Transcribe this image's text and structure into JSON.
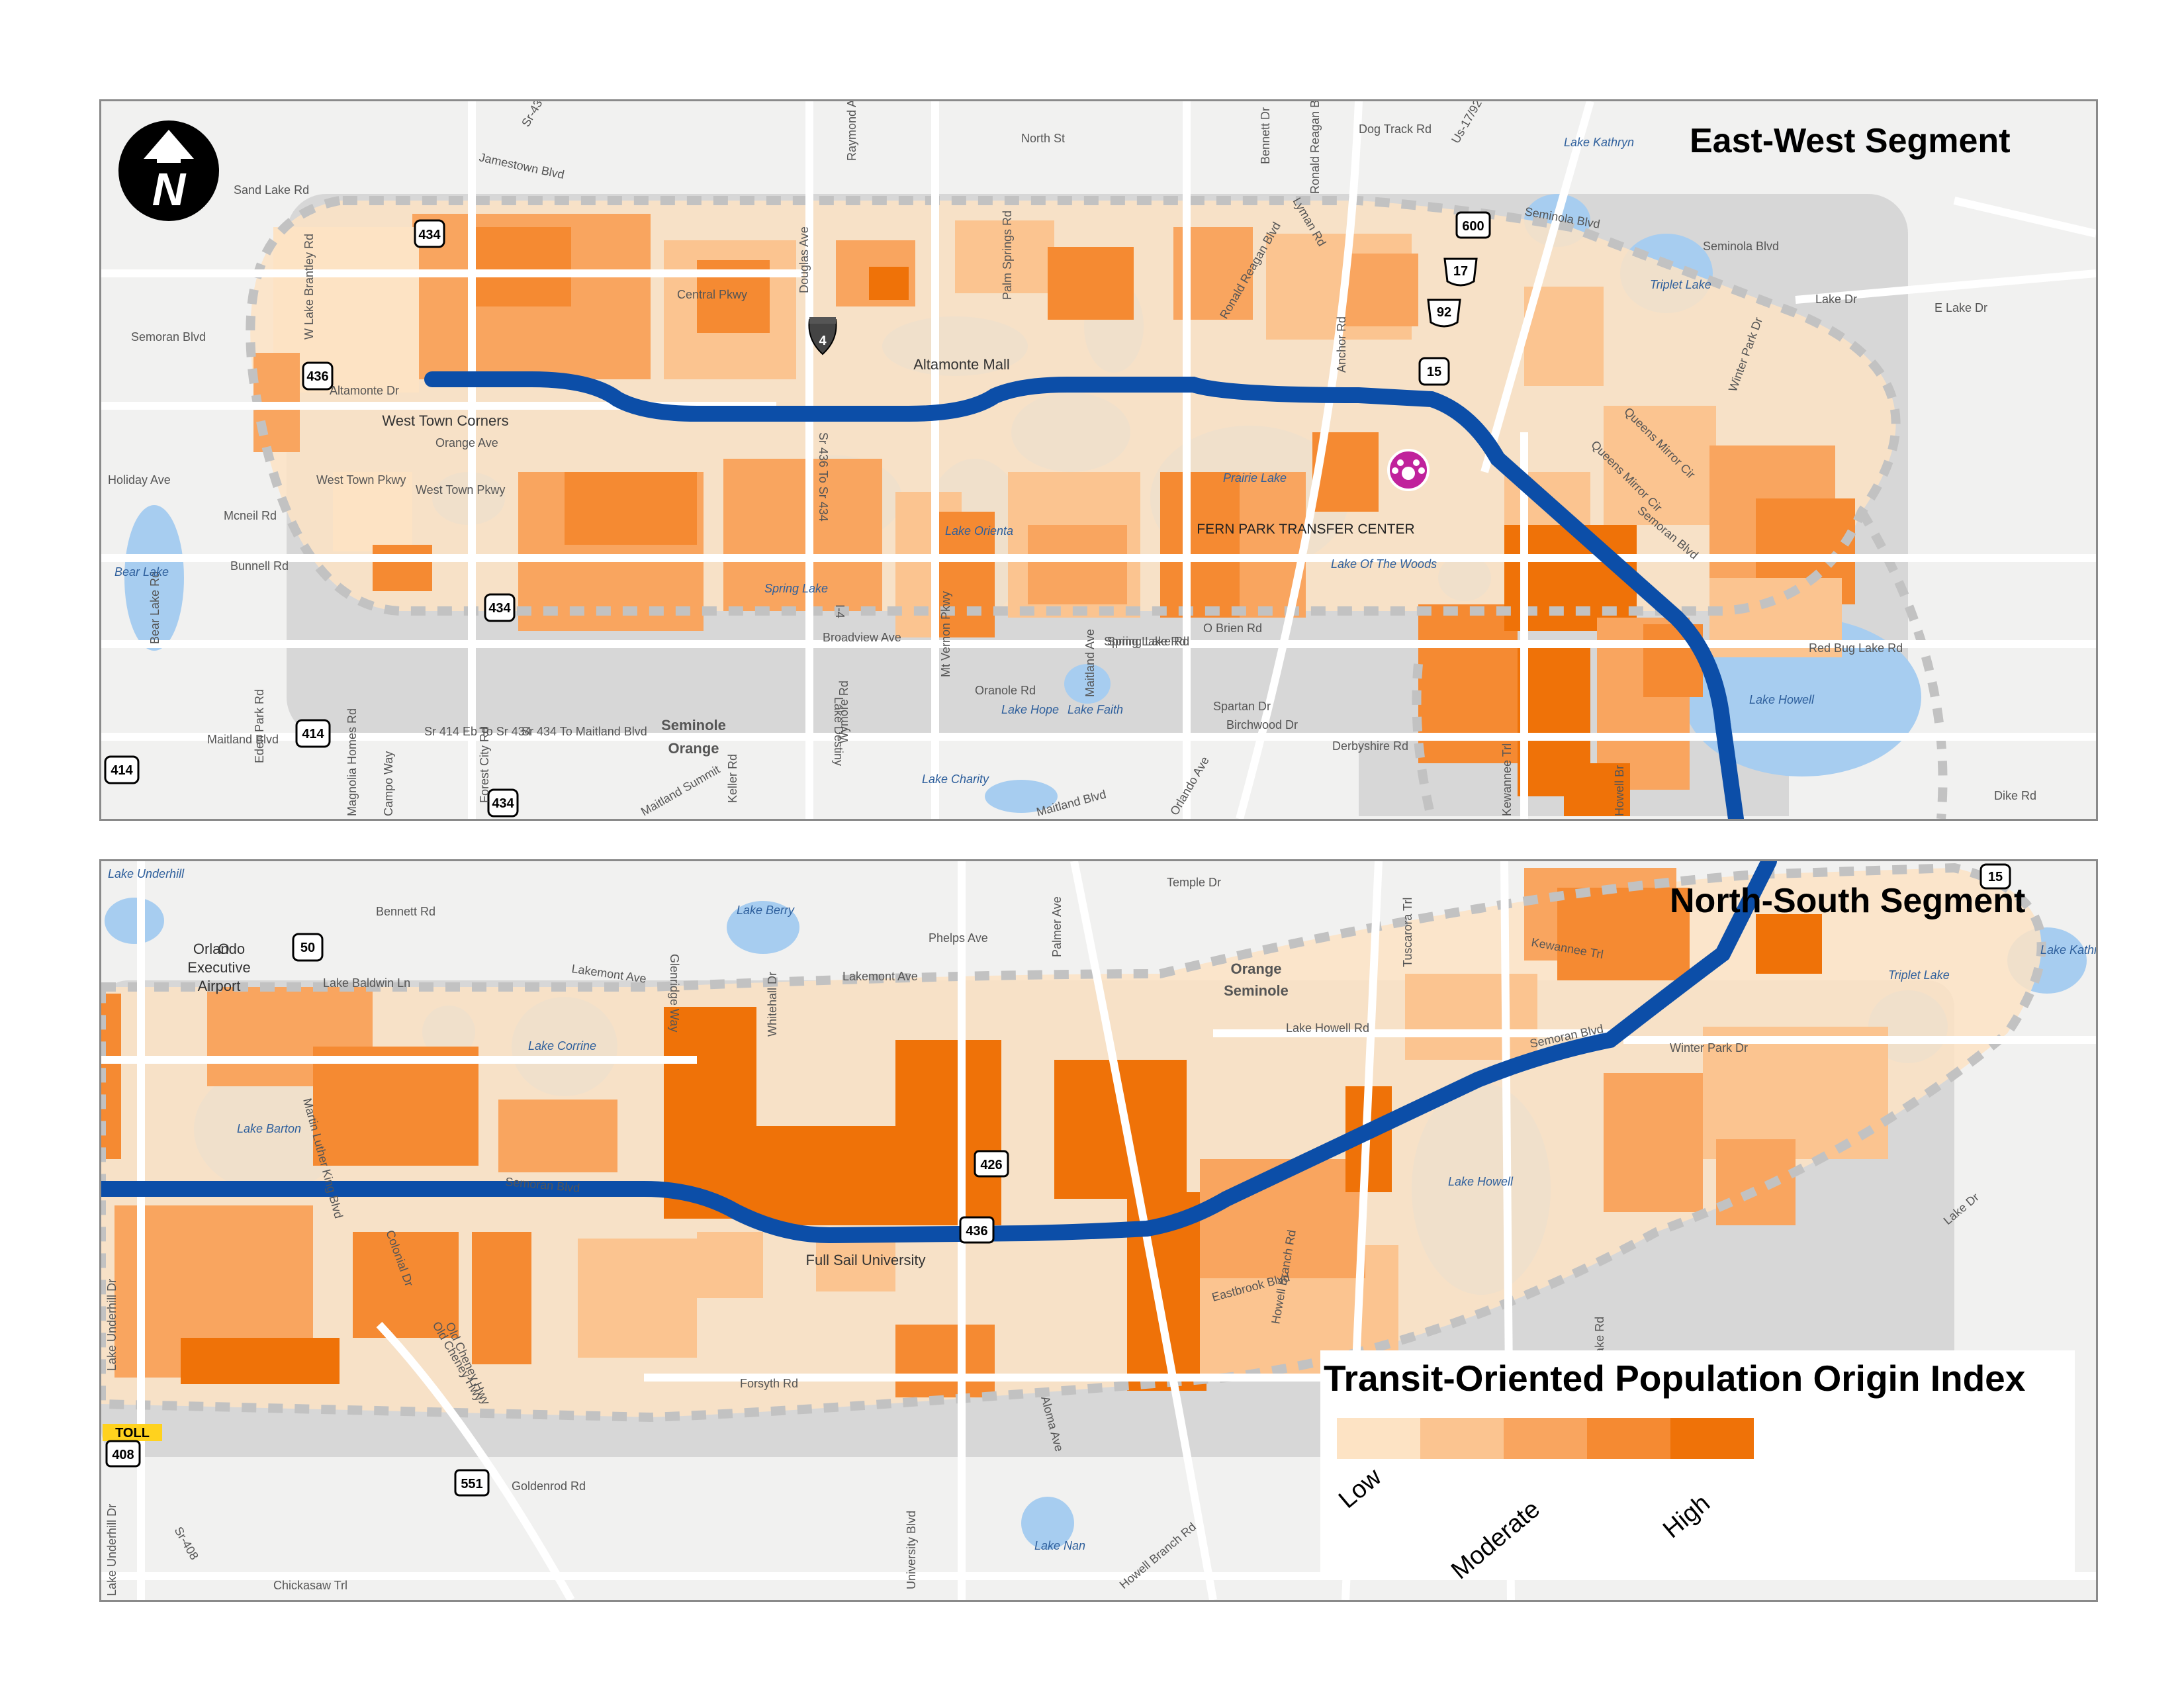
{
  "east_west": {
    "title": "East-West Segment",
    "road_labels": [
      "Sr-434",
      "Jamestown Blvd",
      "Sand Lake Rd",
      "North St",
      "Dog Track Rd",
      "Us-17/92",
      "Seminola Blvd",
      "Seminola Blvd",
      "Lake Dr",
      "E Lake Dr",
      "Central Pkwy",
      "Semoran Blvd",
      "Altamonte Dr",
      "Orange Ave",
      "West Town Pkwy",
      "West Town Pkwy",
      "Mcneil Rd",
      "Bunnell Rd",
      "Spring Lake Rd",
      "O Brien Rd",
      "Broadview Ave",
      "Red Bug Lake Rd",
      "Oranole Rd",
      "Spartan Dr",
      "Birchwood Dr",
      "Derbyshire Rd",
      "Maitland Blvd",
      "Maitland Blvd",
      "Dike Rd",
      "Sr 414 Eb To Sr 434",
      "Sr 434 To Maitland Blvd",
      "Eden Park Rd",
      "Bear Lake Rd",
      "Holiday Ave",
      "W Lake Brantley Rd",
      "Douglas Ave",
      "Palm Springs Rd",
      "Raymond Ave",
      "Bennett Dr",
      "Ronald Reagan Blvd",
      "Lyman Rd",
      "Anchor Rd",
      "Ronald Reagan Blvd",
      "Semoran Blvd",
      "Queens Mirror Cir",
      "Queens Mirror Cir",
      "Winter Park Dr",
      "Spring Lake Rd",
      "Lake Destiny",
      "Wymore Rd",
      "Mt Vernon Pkwy",
      "Maitland Ave",
      "Magnolia Homes Rd",
      "Campo Way",
      "Forest City Rd",
      "Keller Rd",
      "Maitland Summit",
      "Orlando Ave",
      "Kewannee Trl",
      "Howell Br",
      "I-4",
      "Sr 436 To Sr 434"
    ],
    "place_labels": [
      "West Town Corners",
      "Altamonte Mall",
      "Seminole",
      "Orange",
      "FERN PARK TRANSFER CENTER"
    ],
    "lake_labels": [
      "Lake Kathryn",
      "Triplet Lake",
      "Lake Orienta",
      "Prairie Lake",
      "Spring Lake",
      "Bear Lake",
      "Lake Howell",
      "Lake Hope",
      "Lake Faith",
      "Lake Charity",
      "Lake Of The Woods"
    ],
    "shields": [
      "434",
      "436",
      "434",
      "434",
      "4",
      "600",
      "17",
      "92",
      "15",
      "414",
      "414"
    ]
  },
  "north_south": {
    "title": "North-South Segment",
    "road_labels": [
      "Bennett Rd",
      "Temple Dr",
      "Phelps Ave",
      "Lakemont Ave",
      "Lakemont Ave",
      "Lake Baldwin Ln",
      "Lake Howell Rd",
      "Semoran Blvd",
      "Winter Park Dr",
      "Kewannee Trl",
      "Semoran Blvd",
      "Eastbrook Blvd",
      "Forsyth Rd",
      "Goldenrod Rd",
      "Chickasaw Trl",
      "Howell Branch Rd",
      "Howell Branch Rd",
      "Red Bug Lake Rd",
      "Lake Underhill Dr",
      "Lake Underhill Dr",
      "Colonial Dr",
      "Old Cheney Hwy",
      "Martin Luther King Blvd",
      "Aloma Ave",
      "Whitehall Dr",
      "Glenridge Way",
      "Palmer Ave",
      "University Blvd",
      "Lake Dr",
      "Tuscarora Trl",
      "Sr-408",
      "Old Cheney Hwy"
    ],
    "place_labels": [
      "Orlando Executive Airport",
      "Orange",
      "Seminole",
      "Full Sail University"
    ],
    "lake_labels": [
      "Lake Underhill",
      "Lake Berry",
      "Lake Corrine",
      "Lake Barton",
      "Lake Howell",
      "Triplet Lake",
      "Lake Kathryn",
      "Lake Nan"
    ],
    "shields": [
      "50",
      "426",
      "436",
      "551",
      "408",
      "15",
      "TOLL"
    ]
  },
  "legend": {
    "title": "Transit-Oriented Population Origin Index",
    "classes": [
      {
        "label": "Low",
        "color": "#fde3c4"
      },
      {
        "label": "",
        "color": "#fbc490"
      },
      {
        "label": "Moderate",
        "color": "#f9a55f"
      },
      {
        "label": "",
        "color": "#f58a32"
      },
      {
        "label": "High",
        "color": "#ef7208"
      }
    ]
  },
  "colors": {
    "route": "#0c4ea8",
    "water": "#a7cdf0",
    "urban": "#d7d7d7",
    "background": "#f1f1f0",
    "buffer_outline": "#c7c7c7",
    "transfer_center": "#c0229c"
  },
  "icons": [
    "north-arrow-icon",
    "transfer-center-icon",
    "interstate-shield-icon",
    "state-road-shield-icon",
    "us-route-shield-icon",
    "toll-road-icon"
  ]
}
